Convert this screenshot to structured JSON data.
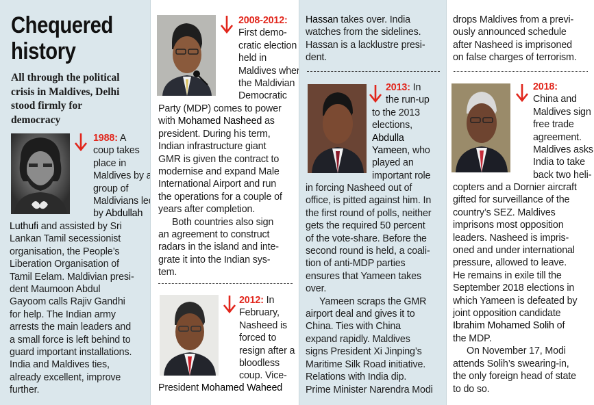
{
  "header": {
    "title_line1": "Chequered",
    "title_line2": "history",
    "standfirst": [
      "All through the political",
      "crisis in Maldives, Delhi",
      "stood firmly for",
      "democracy"
    ]
  },
  "entries": {
    "e1988": {
      "year": "1988:",
      "lines": [
        {
          "t": "A"
        },
        {
          "t": "coup takes"
        },
        {
          "t": "place in"
        },
        {
          "t": "Maldives by a"
        },
        {
          "t": "group of"
        },
        {
          "t": "Maldivians led"
        },
        {
          "t": "by ",
          "n": "Abdullah"
        },
        {
          "n": "Luthufi",
          "t": " and assisted by Sri"
        },
        {
          "t": "Lankan Tamil secessionist"
        },
        {
          "t": "organisation, the People’s"
        },
        {
          "t": "Liberation Organisation of"
        },
        {
          "t": "Tamil Eelam. Maldivian presi-"
        },
        {
          "t": "dent Maumoon Abdul"
        },
        {
          "t": "Gayoom calls Rajiv Gandhi"
        },
        {
          "t": "for help. The Indian army"
        },
        {
          "t": "arrests the main leaders and"
        },
        {
          "t": "a small force is left behind to"
        },
        {
          "t": "guard important installations."
        },
        {
          "t": "India and Maldives ties,"
        },
        {
          "t": "already excellent, improve"
        },
        {
          "t": "further."
        }
      ]
    },
    "e2008": {
      "year": "2008-2012:",
      "lines": [
        {
          "t": "First demo-"
        },
        {
          "t": "cratic election"
        },
        {
          "t": "held in"
        },
        {
          "t": "Maldives where"
        },
        {
          "t": "the Maldivian"
        },
        {
          "t": "Democratic"
        },
        {
          "t": "Party (MDP) comes to power"
        },
        {
          "t": "with ",
          "n": "Mohamed Nasheed",
          "t2": " as"
        },
        {
          "t": "president. During his term,"
        },
        {
          "t": "Indian infrastructure giant"
        },
        {
          "t": "GMR is given the contract to"
        },
        {
          "t": "modernise and expand Male"
        },
        {
          "t": "International Airport and run"
        },
        {
          "t": "the operations for a couple of"
        },
        {
          "t": "years after completion."
        },
        {
          "t": "Both countries also sign",
          "indent": true
        },
        {
          "t": "an agreement to construct"
        },
        {
          "t": "radars in the island and inte-"
        },
        {
          "t": "grate it into the Indian sys-"
        },
        {
          "t": "tem."
        }
      ]
    },
    "e2012": {
      "year": "2012:",
      "lines": [
        {
          "t": "In"
        },
        {
          "t": "February,"
        },
        {
          "t": "Nasheed is"
        },
        {
          "t": "forced to"
        },
        {
          "t": "resign after a"
        },
        {
          "t": "bloodless"
        },
        {
          "t": "coup. Vice-"
        },
        {
          "t": "President ",
          "n": "Mohamed Waheed"
        }
      ]
    },
    "e2012_cont": {
      "lines": [
        {
          "n": "Hassan",
          "t": " takes over. India"
        },
        {
          "t": "watches from the sidelines."
        },
        {
          "t": "Hassan is a lacklustre presi-"
        },
        {
          "t": "dent."
        }
      ]
    },
    "e2013": {
      "year": "2013:",
      "lines": [
        {
          "t": "In"
        },
        {
          "t": "the run-up"
        },
        {
          "t": "to the 2013"
        },
        {
          "t": "elections,"
        },
        {
          "n": "Abdulla"
        },
        {
          "n": "Yameen",
          "t": ", who"
        },
        {
          "t": "played an"
        },
        {
          "t": "important role"
        },
        {
          "t": "in forcing Nasheed out of"
        },
        {
          "t": "office, is pitted against him. In"
        },
        {
          "t": "the first round of polls, neither"
        },
        {
          "t": "gets the required 50 percent"
        },
        {
          "t": "of the vote-share. Before the"
        },
        {
          "t": "second round is held, a coali-"
        },
        {
          "t": "tion of anti-MDP parties"
        },
        {
          "t": "ensures that Yameen takes"
        },
        {
          "t": "over."
        },
        {
          "t": "Yameen scraps the GMR",
          "indent": true
        },
        {
          "t": "airport deal and gives it to"
        },
        {
          "t": "China. Ties with China"
        },
        {
          "t": "expand rapidly. Maldives"
        },
        {
          "t": "signs President Xi Jinping’s"
        },
        {
          "t": "Maritime Silk Road initiative."
        },
        {
          "t": "Relations with India dip."
        },
        {
          "t": "Prime Minister Narendra Modi"
        }
      ]
    },
    "e2013_cont": {
      "lines": [
        {
          "t": "drops Maldives from a previ-"
        },
        {
          "t": "ously announced schedule"
        },
        {
          "t": "after Nasheed is imprisoned"
        },
        {
          "t": "on false charges of terrorism."
        }
      ]
    },
    "e2018": {
      "year": "2018:",
      "lines": [
        {
          "t": "China and"
        },
        {
          "t": "Maldives sign a"
        },
        {
          "t": "free trade"
        },
        {
          "t": "agreement."
        },
        {
          "t": "Maldives asks"
        },
        {
          "t": "India to take"
        },
        {
          "t": "back two heli-"
        },
        {
          "t": "copters and a Dornier aircraft"
        },
        {
          "t": "gifted for surveillance of the"
        },
        {
          "t": "country’s SEZ. Maldives"
        },
        {
          "t": "imprisons most opposition"
        },
        {
          "t": "leaders. Nasheed is impris-"
        },
        {
          "t": "oned and under international"
        },
        {
          "t": "pressure, allowed to leave."
        },
        {
          "t": "He remains in exile till the"
        },
        {
          "t": "September 2018 elections in"
        },
        {
          "t": "which Yameen is defeated by"
        },
        {
          "t": "joint opposition candidate"
        },
        {
          "n": "Ibrahim Mohamed Solih",
          "t": " of"
        },
        {
          "t": "the MDP."
        },
        {
          "t": "On November 17, Modi",
          "indent": true
        },
        {
          "t": "attends Solih’s swearing-in,"
        },
        {
          "t": "the only foreign head of state"
        },
        {
          "t": "to do so."
        }
      ]
    }
  },
  "colors": {
    "panel_blue": "#dbe7ec",
    "year_red": "#e1261c",
    "arrow_red": "#e1261c",
    "rule": "#444444"
  },
  "icons": {
    "arrow": "down-arrow-icon"
  }
}
